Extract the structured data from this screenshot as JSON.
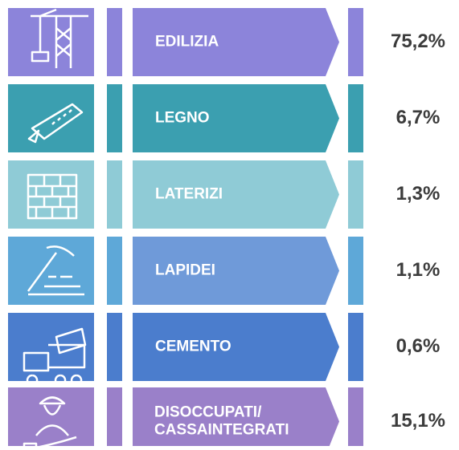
{
  "items": [
    {
      "lines": [
        "EDILIZIA"
      ],
      "value": "75,2%",
      "color": "#8c84da",
      "icon_color": "#8c84da",
      "bar_color": "#8c84da"
    },
    {
      "lines": [
        "LEGNO"
      ],
      "value": "6,7%",
      "color": "#3b9fb0",
      "icon_color": "#3b9fb0",
      "bar_color": "#3b9fb0"
    },
    {
      "lines": [
        "LATERIZI"
      ],
      "value": "1,3%",
      "color": "#8fcbd6",
      "icon_color": "#8fcbd6",
      "bar_color": "#8fcbd6"
    },
    {
      "lines": [
        "LAPIDEI"
      ],
      "value": "1,1%",
      "color": "#6f9ad9",
      "icon_color": "#5ea8d8",
      "bar_color": "#5ea8d8"
    },
    {
      "lines": [
        "CEMENTO"
      ],
      "value": "0,6%",
      "color": "#4b7dcd",
      "icon_color": "#4b7dcd",
      "bar_color": "#4b7dcd"
    },
    {
      "lines": [
        "DISOCCUPATI/",
        "CASSAINTEGRATI"
      ],
      "value": "15,1%",
      "color": "#9a80c9",
      "icon_color": "#9a80c9",
      "bar_color": "#9a80c9"
    }
  ]
}
